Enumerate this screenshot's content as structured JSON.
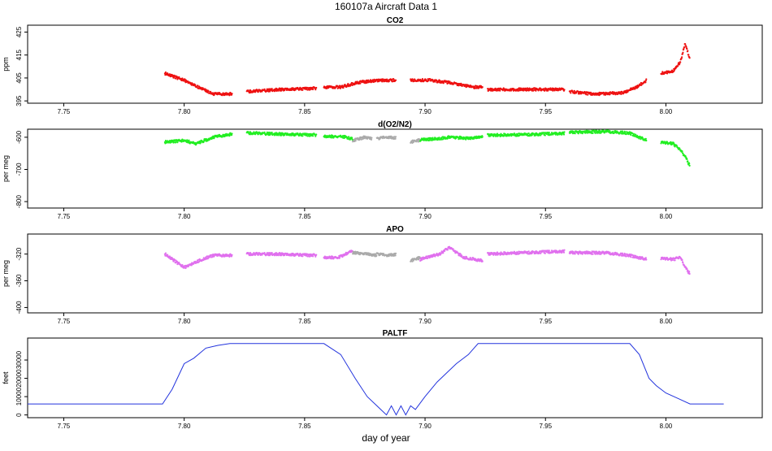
{
  "figure": {
    "title": "160107a   Aircraft Data 1",
    "xlabel": "day of year"
  },
  "chart_data": [
    {
      "type": "scatter",
      "title": "CO2",
      "ylabel": "ppm",
      "xlim": [
        7.735,
        8.04
      ],
      "ylim": [
        394,
        428
      ],
      "xticks": [
        7.75,
        7.8,
        7.85,
        7.9,
        7.95,
        8.0
      ],
      "xtick_labels": [
        "7.75",
        "7.80",
        "7.85",
        "7.90",
        "7.95",
        "8.00"
      ],
      "yticks": [
        395,
        405,
        415,
        425
      ],
      "ytick_labels": [
        "395",
        "405",
        "415",
        "425"
      ],
      "colors": {
        "main": "#ee1111",
        "alt": "#222222"
      },
      "series": [
        {
          "color_key": "main",
          "points": [
            [
              7.792,
              407
            ],
            [
              7.8,
              404
            ],
            [
              7.808,
              400
            ],
            [
              7.812,
              398
            ],
            [
              7.82,
              398
            ]
          ]
        },
        {
          "color_key": "main",
          "points": [
            [
              7.826,
              399
            ],
            [
              7.84,
              400
            ],
            [
              7.855,
              400.5
            ]
          ]
        },
        {
          "color_key": "main",
          "points": [
            [
              7.858,
              401
            ],
            [
              7.865,
              401
            ],
            [
              7.872,
              403
            ],
            [
              7.88,
              404
            ],
            [
              7.888,
              404
            ]
          ]
        },
        {
          "color_key": "main",
          "points": [
            [
              7.894,
              404
            ],
            [
              7.902,
              404
            ],
            [
              7.91,
              403
            ],
            [
              7.92,
              401
            ],
            [
              7.924,
              401
            ]
          ]
        },
        {
          "color_key": "main",
          "points": [
            [
              7.926,
              400
            ],
            [
              7.94,
              400
            ],
            [
              7.958,
              400
            ]
          ]
        },
        {
          "color_key": "main",
          "points": [
            [
              7.96,
              399
            ],
            [
              7.97,
              398
            ],
            [
              7.982,
              398.5
            ],
            [
              7.988,
              401
            ],
            [
              7.992,
              404
            ]
          ]
        },
        {
          "color_key": "main",
          "points": [
            [
              7.998,
              407
            ],
            [
              8.003,
              408
            ],
            [
              8.006,
              412
            ],
            [
              8.008,
              420
            ],
            [
              8.01,
              413
            ]
          ]
        }
      ]
    },
    {
      "type": "scatter",
      "title": "d(O2/N2)",
      "ylabel": "per meg",
      "xlim": [
        7.735,
        8.04
      ],
      "ylim": [
        -820,
        -575
      ],
      "xticks": [
        7.75,
        7.8,
        7.85,
        7.9,
        7.95,
        8.0
      ],
      "xtick_labels": [
        "7.75",
        "7.80",
        "7.85",
        "7.90",
        "7.95",
        "8.00"
      ],
      "yticks": [
        -800,
        -700,
        -600
      ],
      "ytick_labels": [
        "-800",
        "-700",
        "-600"
      ],
      "colors": {
        "main": "#22ee22",
        "alt": "#aaaaaa"
      },
      "series": [
        {
          "color_key": "main",
          "points": [
            [
              7.792,
              -615
            ],
            [
              7.8,
              -610
            ],
            [
              7.805,
              -620
            ],
            [
              7.812,
              -600
            ],
            [
              7.82,
              -590
            ]
          ]
        },
        {
          "color_key": "main",
          "points": [
            [
              7.826,
              -587
            ],
            [
              7.84,
              -590
            ],
            [
              7.855,
              -593
            ]
          ]
        },
        {
          "color_key": "main",
          "points": [
            [
              7.858,
              -597
            ],
            [
              7.866,
              -598
            ],
            [
              7.87,
              -605
            ]
          ]
        },
        {
          "color_key": "alt",
          "points": [
            [
              7.87,
              -610
            ],
            [
              7.875,
              -600
            ],
            [
              7.878,
              -605
            ]
          ]
        },
        {
          "color_key": "alt",
          "points": [
            [
              7.88,
              -605
            ],
            [
              7.884,
              -600
            ],
            [
              7.888,
              -603
            ]
          ]
        },
        {
          "color_key": "alt",
          "points": [
            [
              7.894,
              -615
            ],
            [
              7.898,
              -608
            ]
          ]
        },
        {
          "color_key": "main",
          "points": [
            [
              7.898,
              -608
            ],
            [
              7.905,
              -605
            ],
            [
              7.91,
              -600
            ],
            [
              7.918,
              -603
            ],
            [
              7.924,
              -598
            ]
          ]
        },
        {
          "color_key": "main",
          "points": [
            [
              7.926,
              -594
            ],
            [
              7.94,
              -592
            ],
            [
              7.958,
              -588
            ]
          ]
        },
        {
          "color_key": "main",
          "points": [
            [
              7.96,
              -585
            ],
            [
              7.975,
              -582
            ],
            [
              7.985,
              -587
            ],
            [
              7.992,
              -610
            ]
          ]
        },
        {
          "color_key": "main",
          "points": [
            [
              7.998,
              -615
            ],
            [
              8.003,
              -620
            ],
            [
              8.006,
              -640
            ],
            [
              8.008,
              -660
            ],
            [
              8.01,
              -690
            ]
          ]
        }
      ]
    },
    {
      "type": "scatter",
      "title": "APO",
      "ylabel": "per meg",
      "xlim": [
        7.735,
        8.04
      ],
      "ylim": [
        -408,
        -290
      ],
      "xticks": [
        7.75,
        7.8,
        7.85,
        7.9,
        7.95,
        8.0
      ],
      "xtick_labels": [
        "7.75",
        "7.80",
        "7.85",
        "7.90",
        "7.95",
        "8.00"
      ],
      "yticks": [
        -400,
        -360,
        -320
      ],
      "ytick_labels": [
        "-400",
        "-360",
        "-320"
      ],
      "colors": {
        "main": "#e070ee",
        "alt": "#aaaaaa"
      },
      "series": [
        {
          "color_key": "main",
          "points": [
            [
              7.792,
              -320
            ],
            [
              7.8,
              -340
            ],
            [
              7.806,
              -330
            ],
            [
              7.812,
              -322
            ],
            [
              7.82,
              -322
            ]
          ]
        },
        {
          "color_key": "main",
          "points": [
            [
              7.826,
              -320
            ],
            [
              7.84,
              -320
            ],
            [
              7.855,
              -322
            ]
          ]
        },
        {
          "color_key": "main",
          "points": [
            [
              7.858,
              -325
            ],
            [
              7.864,
              -325
            ],
            [
              7.87,
              -315
            ]
          ]
        },
        {
          "color_key": "alt",
          "points": [
            [
              7.87,
              -318
            ],
            [
              7.876,
              -320
            ],
            [
              7.88,
              -322
            ]
          ]
        },
        {
          "color_key": "alt",
          "points": [
            [
              7.88,
              -320
            ],
            [
              7.884,
              -322
            ],
            [
              7.888,
              -321
            ]
          ]
        },
        {
          "color_key": "alt",
          "points": [
            [
              7.894,
              -330
            ],
            [
              7.898,
              -325
            ]
          ]
        },
        {
          "color_key": "main",
          "points": [
            [
              7.898,
              -328
            ],
            [
              7.906,
              -320
            ],
            [
              7.91,
              -310
            ],
            [
              7.916,
              -325
            ],
            [
              7.924,
              -330
            ]
          ]
        },
        {
          "color_key": "main",
          "points": [
            [
              7.926,
              -320
            ],
            [
              7.94,
              -318
            ],
            [
              7.958,
              -316
            ]
          ]
        },
        {
          "color_key": "main",
          "points": [
            [
              7.96,
              -318
            ],
            [
              7.975,
              -318
            ],
            [
              7.985,
              -322
            ],
            [
              7.992,
              -328
            ]
          ]
        },
        {
          "color_key": "main",
          "points": [
            [
              7.998,
              -326
            ],
            [
              8.003,
              -328
            ],
            [
              8.006,
              -325
            ],
            [
              8.008,
              -340
            ],
            [
              8.01,
              -350
            ]
          ]
        }
      ]
    },
    {
      "type": "line",
      "title": "PALTF",
      "ylabel": "feet",
      "xlim": [
        7.735,
        8.04
      ],
      "ylim": [
        -1500,
        42000
      ],
      "xticks": [
        7.75,
        7.8,
        7.85,
        7.9,
        7.95,
        8.0
      ],
      "xtick_labels": [
        "7.75",
        "7.80",
        "7.85",
        "7.90",
        "7.95",
        "8.00"
      ],
      "yticks": [
        0,
        10000,
        20000,
        30000
      ],
      "ytick_labels": [
        "0",
        "10000",
        "20000",
        "30000"
      ],
      "colors": {
        "main": "#2233dd"
      },
      "series": [
        {
          "color_key": "main",
          "points": [
            [
              7.735,
              6000
            ],
            [
              7.791,
              6000
            ],
            [
              7.795,
              14000
            ],
            [
              7.8,
              28000
            ],
            [
              7.804,
              31000
            ],
            [
              7.809,
              36500
            ],
            [
              7.814,
              38000
            ],
            [
              7.819,
              39000
            ],
            [
              7.858,
              39000
            ],
            [
              7.865,
              33000
            ],
            [
              7.871,
              20000
            ],
            [
              7.876,
              10000
            ],
            [
              7.88,
              5000
            ],
            [
              7.884,
              0
            ],
            [
              7.886,
              5000
            ],
            [
              7.888,
              0
            ],
            [
              7.89,
              5000
            ],
            [
              7.892,
              0
            ],
            [
              7.894,
              5000
            ],
            [
              7.896,
              3000
            ],
            [
              7.9,
              10000
            ],
            [
              7.905,
              18000
            ],
            [
              7.913,
              28000
            ],
            [
              7.918,
              33000
            ],
            [
              7.922,
              39000
            ],
            [
              7.985,
              39000
            ],
            [
              7.989,
              33000
            ],
            [
              7.993,
              20000
            ],
            [
              7.996,
              16000
            ],
            [
              8.0,
              12000
            ],
            [
              8.005,
              9000
            ],
            [
              8.01,
              6000
            ],
            [
              8.024,
              6000
            ]
          ]
        }
      ]
    }
  ]
}
